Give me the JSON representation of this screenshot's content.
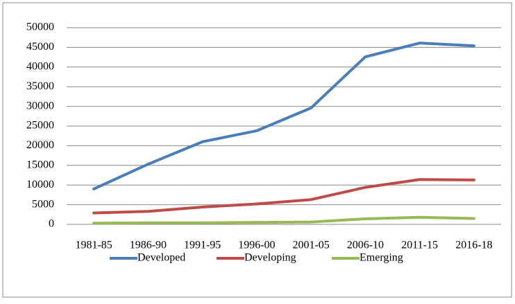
{
  "chart_data": {
    "type": "line",
    "categories": [
      "1981-85",
      "1986-90",
      "1991-95",
      "1996-00",
      "2001-05",
      "2006-10",
      "2011-15",
      "2016-18"
    ],
    "series": [
      {
        "name": "Developed",
        "color": "#4a7ebb",
        "values": [
          9000,
          15300,
          21000,
          23800,
          29600,
          42600,
          46100,
          45400
        ]
      },
      {
        "name": "Developing",
        "color": "#be4b48",
        "values": [
          2900,
          3300,
          4400,
          5200,
          6300,
          9400,
          11400,
          11300
        ]
      },
      {
        "name": "Emerging",
        "color": "#98b954",
        "values": [
          300,
          400,
          400,
          500,
          600,
          1400,
          1800,
          1500
        ]
      }
    ],
    "ylim": [
      0,
      50000
    ],
    "yticks": [
      0,
      5000,
      10000,
      15000,
      20000,
      25000,
      30000,
      35000,
      40000,
      45000,
      50000
    ],
    "grid": true,
    "legend": "bottom"
  }
}
